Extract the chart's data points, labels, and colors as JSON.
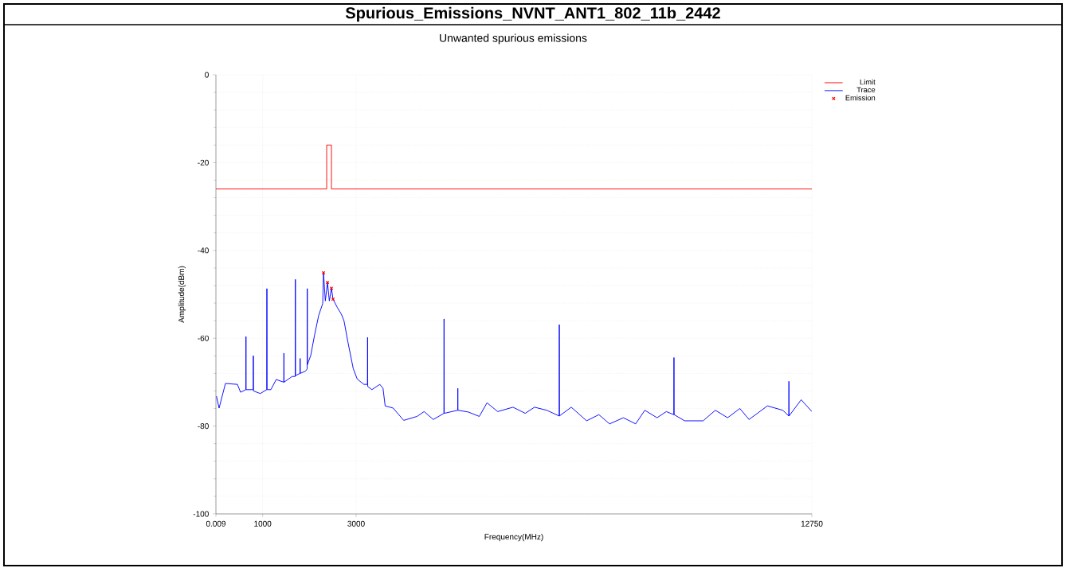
{
  "chart_data": {
    "type": "line",
    "title": "Spurious_Emissions_NVNT_ANT1_802_11b_2442",
    "subtitle": "Unwanted spurious emissions",
    "xlabel": "Frequency(MHz)",
    "ylabel": "Amplitude(dBm)",
    "xlim": [
      0.009,
      12750
    ],
    "ylim": [
      -100,
      0
    ],
    "xticks": [
      0.009,
      1000,
      3000,
      12750
    ],
    "yticks": [
      -100,
      -80,
      -60,
      -40,
      -20,
      0
    ],
    "grid": true,
    "legend": "top right",
    "series": [
      {
        "name": "Limit",
        "color": "#ff0000",
        "x": [
          0.009,
          2370,
          2370,
          2472,
          2472,
          12750
        ],
        "values": [
          -26,
          -26,
          -16,
          -16,
          -26,
          -26
        ]
      },
      {
        "name": "Trace",
        "color": "#0000ff",
        "x": [
          12,
          68,
          204,
          460,
          528,
          640,
          643,
          646,
          798,
          801,
          804,
          949,
          1088,
          1091,
          1094,
          1176,
          1290,
          1452,
          1455,
          1458,
          1631,
          1697,
          1700,
          1703,
          1799,
          1802,
          1805,
          1915,
          1952,
          1955,
          1958,
          2029,
          2114,
          2199,
          2285,
          2302,
          2341,
          2387,
          2427,
          2472,
          2506,
          2597,
          2683,
          2740,
          2825,
          2938,
          3024,
          3166,
          3242,
          3245,
          3248,
          3337,
          3507,
          3575,
          3621,
          3791,
          4018,
          4302,
          4455,
          4651,
          4878,
          4881,
          4884,
          5173,
          5176,
          5179,
          5400,
          5635,
          5800,
          6029,
          6356,
          6618,
          6816,
          7078,
          7344,
          7347,
          7350,
          7602,
          7931,
          8193,
          8423,
          8718,
          8980,
          9176,
          9438,
          9636,
          9797,
          9800,
          9803,
          10029,
          10423,
          10685,
          10947,
          11210,
          11406,
          11800,
          12128,
          12256,
          12259,
          12262,
          12522,
          12750
        ],
        "values": [
          -73.2,
          -75.9,
          -70.3,
          -70.5,
          -72.3,
          -71.7,
          -59.6,
          -71.7,
          -71.7,
          -64.0,
          -72.0,
          -72.6,
          -71.7,
          -48.7,
          -71.7,
          -71.7,
          -69.4,
          -70.0,
          -63.4,
          -70.0,
          -68.7,
          -68.7,
          -46.6,
          -68.5,
          -68.0,
          -64.6,
          -68.0,
          -67.5,
          -67.0,
          -48.7,
          -66.0,
          -63.9,
          -59.1,
          -54.8,
          -52.1,
          -45.1,
          -51.5,
          -47.3,
          -51.5,
          -48.6,
          -51.1,
          -53.0,
          -54.5,
          -56.0,
          -60.9,
          -66.9,
          -69.3,
          -70.5,
          -70.5,
          -59.8,
          -71.0,
          -71.7,
          -70.5,
          -71.4,
          -75.4,
          -75.9,
          -78.7,
          -77.8,
          -76.7,
          -78.5,
          -77.1,
          -55.6,
          -77.1,
          -76.4,
          -71.4,
          -76.4,
          -76.8,
          -77.8,
          -74.7,
          -76.7,
          -75.7,
          -77.1,
          -75.7,
          -76.4,
          -77.7,
          -56.9,
          -77.7,
          -75.7,
          -78.8,
          -77.4,
          -79.5,
          -78.1,
          -79.5,
          -76.4,
          -78.1,
          -76.7,
          -77.4,
          -64.4,
          -77.4,
          -78.8,
          -78.8,
          -76.4,
          -78.1,
          -76.0,
          -78.5,
          -75.4,
          -76.4,
          -77.7,
          -69.8,
          -77.7,
          -74.0,
          -76.7
        ]
      },
      {
        "name": "Emission",
        "type": "scatter",
        "color": "#ff0000",
        "marker": "cross",
        "x": [
          2302,
          2387,
          2472,
          2506
        ],
        "values": [
          -45.1,
          -47.3,
          -48.6,
          -51.1
        ]
      }
    ]
  }
}
